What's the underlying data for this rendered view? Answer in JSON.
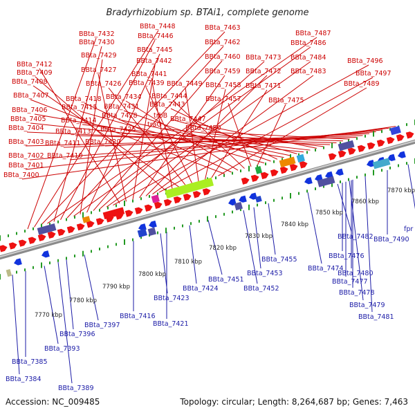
{
  "title": "Bradyrhizobium sp. BTAi1, complete genome",
  "footer": {
    "accession": "Accession: NC_009485",
    "topology": "Topology: circular; Length: 8,264,687 bp; Genes: 7,463"
  },
  "colors": {
    "forward_gene": "#ee1111",
    "reverse_gene": "#1133dd",
    "rna_gene": "#5050a0",
    "highlight_gene": "#aaee22",
    "tick": "#229922",
    "backbone": "#9a9a9a",
    "label_top": "#cc0000",
    "label_bottom": "#1a1aa6"
  },
  "kbp_ticks": [
    "7770 kbp",
    "7780 kbp",
    "7790 kbp",
    "7800 kbp",
    "7810 kbp",
    "7820 kbp",
    "7830 kbp",
    "7840 kbp",
    "7850 kbp",
    "7860 kbp",
    "7870 kbp"
  ],
  "top_labels": [
    "BBta_7432",
    "BBta_7448",
    "BBta_7463",
    "BBta_7487",
    "BBta_7430",
    "BBta_7446",
    "BBta_7462",
    "BBta_7486",
    "BBta_7429",
    "BBta_7445",
    "BBta_7460",
    "BBta_7473",
    "BBta_7484",
    "BBta_7496",
    "BBta_7412",
    "BBta_7427",
    "BBta_7442",
    "BBta_7459",
    "BBta_7472",
    "BBta_7483",
    "BBta_7497",
    "BBta_7409",
    "BBta_7441",
    "BBta_7408",
    "BBta_7426",
    "BBta_7439",
    "BBta_7449",
    "BBta_7458",
    "BBta_7471",
    "BBta_7489",
    "BBta_7407",
    "BBta_7418",
    "BBta_7434",
    "BBta_7444",
    "BBta_7457",
    "BBta_7475",
    "BBta_7415",
    "BBta_7431",
    "BBta_7443",
    "BBta_7406",
    "BBta_7428",
    "trbB",
    "BBta_7405",
    "BBta_7414",
    "BBta_7447",
    "traG",
    "BBta_7404",
    "BBta_7413",
    "BBta_7425",
    "BBta_7450",
    "BBta_7403",
    "BBta_7411",
    "BBta_7420",
    "BBta_7402",
    "BBta_7410",
    "BBta_7401",
    "BBta_7400"
  ],
  "bottom_labels": [
    "BBta_7490",
    "fpr",
    "BBta_7482",
    "BBta_7476",
    "BBta_7455",
    "BBta_7474",
    "BBta_7480",
    "BBta_7453",
    "BBta_7451",
    "BBta_7477",
    "BBta_7424",
    "BBta_7452",
    "BBta_7478",
    "BBta_7423",
    "BBta_7479",
    "BBta_7416",
    "BBta_7481",
    "BBta_7397",
    "BBta_7421",
    "BBta_7396",
    "BBta_7393",
    "BBta_7385",
    "BBta_7384",
    "BBta_7389"
  ]
}
